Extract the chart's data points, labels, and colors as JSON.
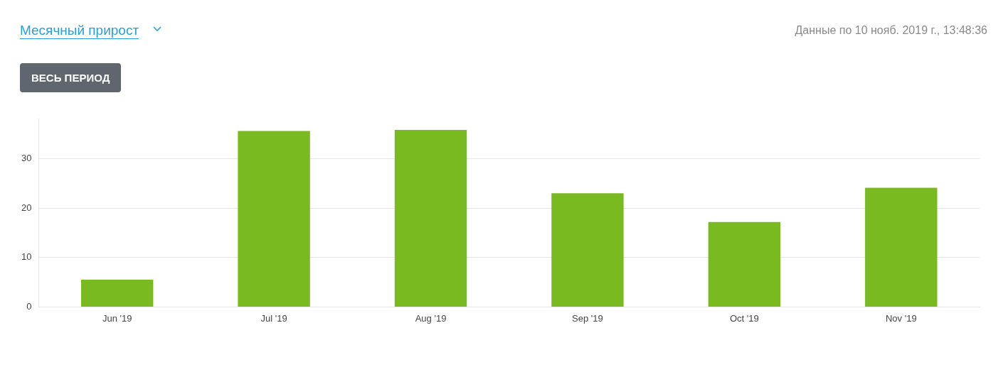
{
  "chart_data": {
    "type": "bar",
    "title": "Месячный прирост",
    "annotations": [
      "Данные по 10 нояб. 2019 г., 13:48:36",
      "ВЕСЬ ПЕРИОД"
    ],
    "categories": [
      "Jun '19",
      "Jul '19",
      "Aug '19",
      "Sep '19",
      "Oct '19",
      "Nov '19"
    ],
    "values": [
      5.5,
      35.6,
      35.8,
      23.0,
      17.2,
      24.1
    ],
    "color": "#7aba21",
    "ylim": [
      0,
      38
    ],
    "yticks": [
      0,
      10,
      20,
      30
    ],
    "grid": "y",
    "legend": false
  }
}
